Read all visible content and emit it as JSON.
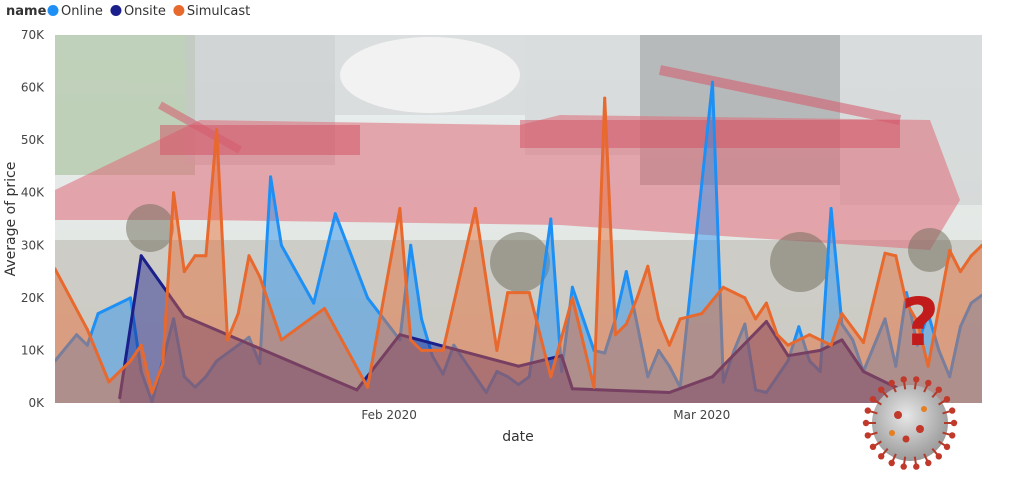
{
  "legend": {
    "title": "name",
    "items": [
      {
        "label": "Online",
        "color": "#1e90f5"
      },
      {
        "label": "Onsite",
        "color": "#1a1f8c"
      },
      {
        "label": "Simulcast",
        "color": "#e8692e"
      }
    ]
  },
  "chart_data": {
    "type": "area",
    "title": "",
    "xlabel": "date",
    "ylabel": "Average of price",
    "x_ticks": [
      "Feb 2020",
      "Mar 2020"
    ],
    "x_tick_dates": [
      "2020-02-01",
      "2020-03-01"
    ],
    "xlim": [
      "2020-01-01",
      "2020-03-27"
    ],
    "y_ticks": [
      "0K",
      "10K",
      "20K",
      "30K",
      "40K",
      "50K",
      "60K",
      "70K"
    ],
    "ylim": [
      0,
      70000
    ],
    "legend_position": "top-left",
    "grid": false,
    "background_image": "farm-equipment-photo",
    "annotation_image": "coronavirus-question-mark",
    "series": [
      {
        "name": "Online",
        "color": "#1e90f5",
        "x": [
          "2020-01-01",
          "2020-01-03",
          "2020-01-04",
          "2020-01-05",
          "2020-01-08",
          "2020-01-09",
          "2020-01-10",
          "2020-01-11",
          "2020-01-12",
          "2020-01-13",
          "2020-01-14",
          "2020-01-15",
          "2020-01-16",
          "2020-01-19",
          "2020-01-20",
          "2020-01-21",
          "2020-01-22",
          "2020-01-25",
          "2020-01-27",
          "2020-01-30",
          "2020-02-02",
          "2020-02-03",
          "2020-02-04",
          "2020-02-05",
          "2020-02-06",
          "2020-02-07",
          "2020-02-10",
          "2020-02-11",
          "2020-02-12",
          "2020-02-13",
          "2020-02-14",
          "2020-02-16",
          "2020-02-17",
          "2020-02-18",
          "2020-02-19",
          "2020-02-20",
          "2020-02-21",
          "2020-02-22",
          "2020-02-23",
          "2020-02-24",
          "2020-02-25",
          "2020-02-26",
          "2020-02-27",
          "2020-02-28",
          "2020-03-02",
          "2020-03-03",
          "2020-03-04",
          "2020-03-05",
          "2020-03-06",
          "2020-03-07",
          "2020-03-09",
          "2020-03-10",
          "2020-03-11",
          "2020-03-12",
          "2020-03-13",
          "2020-03-14",
          "2020-03-15",
          "2020-03-16",
          "2020-03-18",
          "2020-03-19",
          "2020-03-20",
          "2020-03-21",
          "2020-03-22",
          "2020-03-23",
          "2020-03-24",
          "2020-03-25",
          "2020-03-26",
          "2020-03-27"
        ],
        "values": [
          8000,
          13000,
          11000,
          17000,
          20000,
          6000,
          200,
          8000,
          16000,
          5000,
          3000,
          5000,
          8000,
          12500,
          7500,
          43000,
          30000,
          19000,
          36000,
          20000,
          12000,
          30000,
          16000,
          9000,
          5500,
          11000,
          2000,
          6000,
          5000,
          3500,
          5000,
          35000,
          6000,
          22000,
          16000,
          10000,
          9500,
          16000,
          25000,
          15000,
          5000,
          10000,
          7000,
          3000,
          61000,
          4000,
          10000,
          15000,
          2500,
          2000,
          8000,
          14500,
          8000,
          6000,
          37000,
          15000,
          12000,
          6000,
          16000,
          7000,
          21000,
          11000,
          17000,
          10000,
          5000,
          14500,
          19000,
          20500
        ]
      },
      {
        "name": "Onsite",
        "color": "#1a1f8c",
        "x": [
          "2020-01-07",
          "2020-01-09",
          "2020-01-13",
          "2020-01-29",
          "2020-02-02",
          "2020-02-13",
          "2020-02-17",
          "2020-02-18",
          "2020-02-27",
          "2020-03-02",
          "2020-03-07",
          "2020-03-09",
          "2020-03-12",
          "2020-03-14",
          "2020-03-16",
          "2020-03-20"
        ],
        "values": [
          1000,
          28000,
          16500,
          2500,
          13000,
          7000,
          9000,
          2700,
          2000,
          5000,
          15500,
          9000,
          10000,
          12000,
          6000,
          2000
        ]
      },
      {
        "name": "Simulcast",
        "color": "#e8692e",
        "x": [
          "2020-01-01",
          "2020-01-04",
          "2020-01-06",
          "2020-01-08",
          "2020-01-09",
          "2020-01-10",
          "2020-01-11",
          "2020-01-12",
          "2020-01-13",
          "2020-01-14",
          "2020-01-15",
          "2020-01-16",
          "2020-01-17",
          "2020-01-18",
          "2020-01-19",
          "2020-01-20",
          "2020-01-22",
          "2020-01-26",
          "2020-01-30",
          "2020-02-02",
          "2020-02-03",
          "2020-02-04",
          "2020-02-06",
          "2020-02-09",
          "2020-02-11",
          "2020-02-12",
          "2020-02-14",
          "2020-02-16",
          "2020-02-18",
          "2020-02-20",
          "2020-02-21",
          "2020-02-22",
          "2020-02-23",
          "2020-02-24",
          "2020-02-25",
          "2020-02-26",
          "2020-02-27",
          "2020-02-28",
          "2020-03-01",
          "2020-03-03",
          "2020-03-04",
          "2020-03-05",
          "2020-03-06",
          "2020-03-07",
          "2020-03-08",
          "2020-03-09",
          "2020-03-11",
          "2020-03-13",
          "2020-03-14",
          "2020-03-16",
          "2020-03-18",
          "2020-03-19",
          "2020-03-20",
          "2020-03-21",
          "2020-03-22",
          "2020-03-23",
          "2020-03-24",
          "2020-03-25",
          "2020-03-26",
          "2020-03-27"
        ],
        "values": [
          25500,
          14000,
          4000,
          8000,
          11000,
          2000,
          7500,
          40000,
          25000,
          28000,
          28000,
          52000,
          12000,
          17000,
          28000,
          24000,
          12000,
          18000,
          3000,
          37000,
          12000,
          10000,
          10000,
          37000,
          10000,
          21000,
          21000,
          5000,
          20000,
          3000,
          58000,
          13000,
          15000,
          20000,
          26000,
          16000,
          11000,
          16000,
          17000,
          22000,
          21000,
          20000,
          16000,
          19000,
          13000,
          11000,
          13000,
          11000,
          17000,
          11500,
          28500,
          28000,
          19000,
          15500,
          7000,
          18000,
          29000,
          25000,
          28000,
          30000
        ]
      }
    ]
  }
}
